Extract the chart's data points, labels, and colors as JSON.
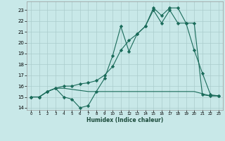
{
  "xlabel": "Humidex (Indice chaleur)",
  "xlim": [
    -0.5,
    23.5
  ],
  "ylim": [
    13.8,
    23.8
  ],
  "yticks": [
    14,
    15,
    16,
    17,
    18,
    19,
    20,
    21,
    22,
    23
  ],
  "xticks": [
    0,
    1,
    2,
    3,
    4,
    5,
    6,
    7,
    8,
    9,
    10,
    11,
    12,
    13,
    14,
    15,
    16,
    17,
    18,
    19,
    20,
    21,
    22,
    23
  ],
  "background_color": "#c8e8e8",
  "grid_color": "#aacccc",
  "line_color": "#1a6b5a",
  "s1_x": [
    0,
    1,
    2,
    3,
    4,
    5,
    6,
    7,
    8,
    9,
    10,
    11,
    12,
    13,
    14,
    15,
    16,
    17,
    18,
    19,
    20,
    21,
    22,
    23
  ],
  "s1_y": [
    15.0,
    15.0,
    15.5,
    15.8,
    15.0,
    14.8,
    14.0,
    14.2,
    15.5,
    16.7,
    18.8,
    21.5,
    19.2,
    20.8,
    21.5,
    23.2,
    22.5,
    23.2,
    23.2,
    21.8,
    19.3,
    17.2,
    15.2,
    15.1
  ],
  "s2_x": [
    0,
    1,
    2,
    3,
    4,
    5,
    6,
    7,
    8,
    9,
    10,
    11,
    12,
    13,
    14,
    15,
    16,
    17,
    18,
    19,
    20,
    21,
    22,
    23
  ],
  "s2_y": [
    15.0,
    15.0,
    15.5,
    15.8,
    16.0,
    16.0,
    16.2,
    16.3,
    16.5,
    17.0,
    17.8,
    19.3,
    20.2,
    20.8,
    21.5,
    23.0,
    21.8,
    23.0,
    21.8,
    21.8,
    21.8,
    15.2,
    15.1,
    15.1
  ],
  "s3_x": [
    0,
    1,
    2,
    3,
    4,
    5,
    6,
    7,
    8,
    9,
    10,
    11,
    12,
    13,
    14,
    15,
    16,
    17,
    18,
    19,
    20,
    21,
    22,
    23
  ],
  "s3_y": [
    15.0,
    15.0,
    15.5,
    15.8,
    15.8,
    15.7,
    15.6,
    15.5,
    15.5,
    15.5,
    15.5,
    15.5,
    15.5,
    15.5,
    15.5,
    15.5,
    15.5,
    15.5,
    15.5,
    15.5,
    15.5,
    15.3,
    15.1,
    15.1
  ]
}
